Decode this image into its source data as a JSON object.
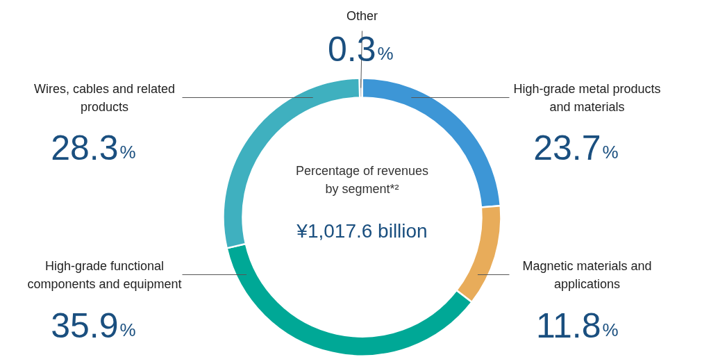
{
  "chart_data": {
    "type": "donut",
    "title": "Percentage of revenues by segment*²",
    "annotations": [
      "¥1,017.6 billion"
    ],
    "categories": [
      "High-grade metal products and materials",
      "Magnetic materials and applications",
      "High-grade functional components and equipment",
      "Wires, cables and related products",
      "Other"
    ],
    "values": [
      23.7,
      11.8,
      35.9,
      28.3,
      0.3
    ],
    "colors": [
      "#3d96d6",
      "#e8ac5a",
      "#00a896",
      "#3fb0bf",
      "#9aa5ad"
    ],
    "value_labels": [
      "23.7%",
      "11.8%",
      "35.9%",
      "28.3%",
      "0.3%"
    ]
  }
}
